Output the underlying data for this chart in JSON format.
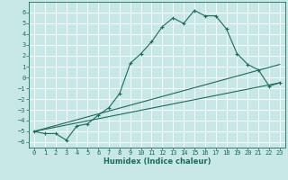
{
  "xlabel": "Humidex (Indice chaleur)",
  "ylabel": "",
  "xlim": [
    -0.5,
    23.5
  ],
  "ylim": [
    -6.5,
    7.0
  ],
  "xticks": [
    0,
    1,
    2,
    3,
    4,
    5,
    6,
    7,
    8,
    9,
    10,
    11,
    12,
    13,
    14,
    15,
    16,
    17,
    18,
    19,
    20,
    21,
    22,
    23
  ],
  "yticks": [
    -6,
    -5,
    -4,
    -3,
    -2,
    -1,
    0,
    1,
    2,
    3,
    4,
    5,
    6
  ],
  "bg_color": "#c8e8e8",
  "line_color": "#1a6b5a",
  "grid_color": "#ffffff",
  "series1_x": [
    0,
    1,
    2,
    3,
    4,
    5,
    6,
    7,
    8,
    9,
    10,
    11,
    12,
    13,
    14,
    15,
    16,
    17,
    18,
    19,
    20,
    21,
    22,
    23
  ],
  "series1_y": [
    -5.0,
    -5.2,
    -5.2,
    -5.8,
    -4.5,
    -4.3,
    -3.5,
    -2.8,
    -1.5,
    1.3,
    2.2,
    3.3,
    4.7,
    5.5,
    5.0,
    6.2,
    5.7,
    5.7,
    4.5,
    2.2,
    1.2,
    0.7,
    -0.8,
    -0.5
  ],
  "series2_x": [
    0,
    23
  ],
  "series2_y": [
    -5.0,
    -0.5
  ],
  "series3_x": [
    0,
    23
  ],
  "series3_y": [
    -5.0,
    1.2
  ],
  "font_size_label": 5.5,
  "font_size_tick": 5.0,
  "font_size_xlabel": 6.0
}
